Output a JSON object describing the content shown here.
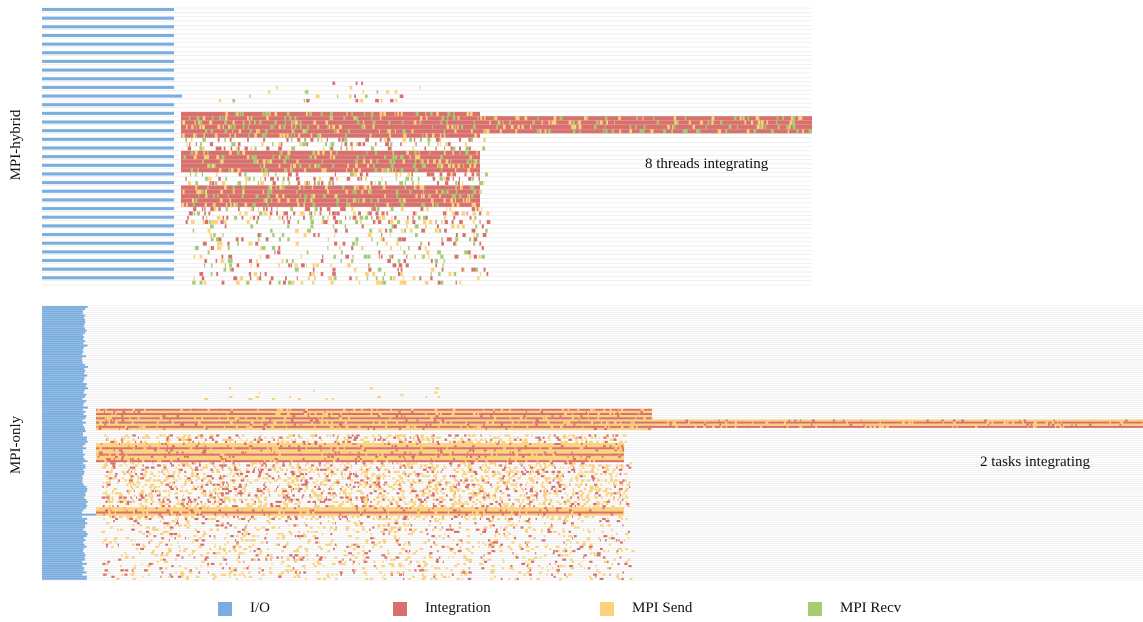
{
  "chart_data": [
    {
      "type": "timeline",
      "panel_label": "MPI-hybrid",
      "annotation": "8 threads integrating",
      "rows": 64,
      "states": [
        "I/O",
        "Integration",
        "MPI Send",
        "MPI Recv"
      ],
      "dominant_state": "Integration",
      "grid": true
    },
    {
      "type": "timeline",
      "panel_label": "MPI-only",
      "annotation": "2 tasks integrating",
      "rows": 128,
      "states": [
        "I/O",
        "Integration",
        "MPI Send",
        "MPI Recv"
      ],
      "dominant_state": "MPI Send",
      "grid": true
    }
  ],
  "legend": [
    {
      "label": "I/O",
      "color": "#7aaee0"
    },
    {
      "label": "Integration",
      "color": "#d9706e"
    },
    {
      "label": "MPI Send",
      "color": "#fcd27a"
    },
    {
      "label": "MPI Recv",
      "color": "#a3cd72"
    }
  ]
}
